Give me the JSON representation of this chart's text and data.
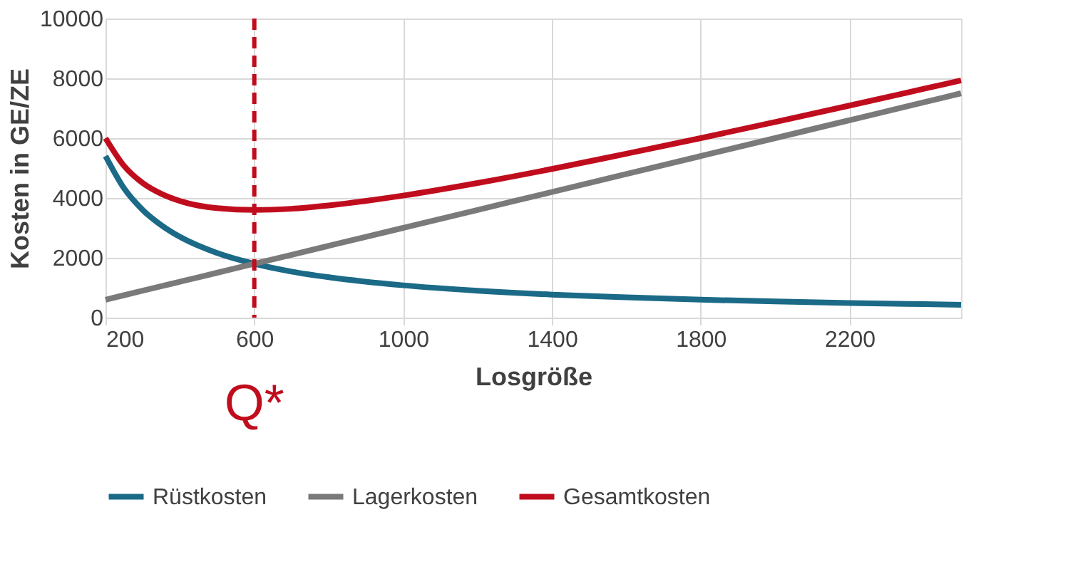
{
  "chart_data": {
    "type": "line",
    "xlabel": "Losgröße",
    "ylabel": "Kosten in GE/ZE",
    "x": [
      200,
      250,
      300,
      350,
      400,
      500,
      600,
      700,
      800,
      1000,
      1200,
      1400,
      1600,
      1800,
      2000,
      2200,
      2400,
      2500
    ],
    "series": [
      {
        "name": "Rüstkosten",
        "color": "#1b6a87",
        "values": [
          5400,
          4320,
          3600,
          3090,
          2700,
          2160,
          1800,
          1540,
          1350,
          1080,
          900,
          770,
          680,
          600,
          540,
          490,
          450,
          430
        ]
      },
      {
        "name": "Lagerkosten",
        "color": "#7a7a7a",
        "values": [
          600,
          750,
          900,
          1050,
          1200,
          1500,
          1800,
          2100,
          2400,
          3000,
          3600,
          4200,
          4800,
          5400,
          6000,
          6600,
          7200,
          7500
        ]
      },
      {
        "name": "Gesamtkosten",
        "color": "#c00d1e",
        "values": [
          6000,
          5070,
          4500,
          4140,
          3900,
          3660,
          3600,
          3640,
          3750,
          4080,
          4500,
          4970,
          5480,
          6000,
          6540,
          7090,
          7650,
          7930
        ]
      }
    ],
    "xlim": [
      200,
      2500
    ],
    "xticks": [
      200,
      600,
      1000,
      1400,
      1800,
      2200
    ],
    "ylim": [
      0,
      10000
    ],
    "yticks": [
      0,
      2000,
      4000,
      6000,
      8000,
      10000
    ],
    "ref_lines": [
      {
        "axis": "x",
        "value": 600,
        "label": "Q*",
        "color": "#c00d1e",
        "line_style": "dashed"
      }
    ],
    "grid": true,
    "legend": "bottom",
    "marker": "none",
    "line_style": "solid"
  }
}
